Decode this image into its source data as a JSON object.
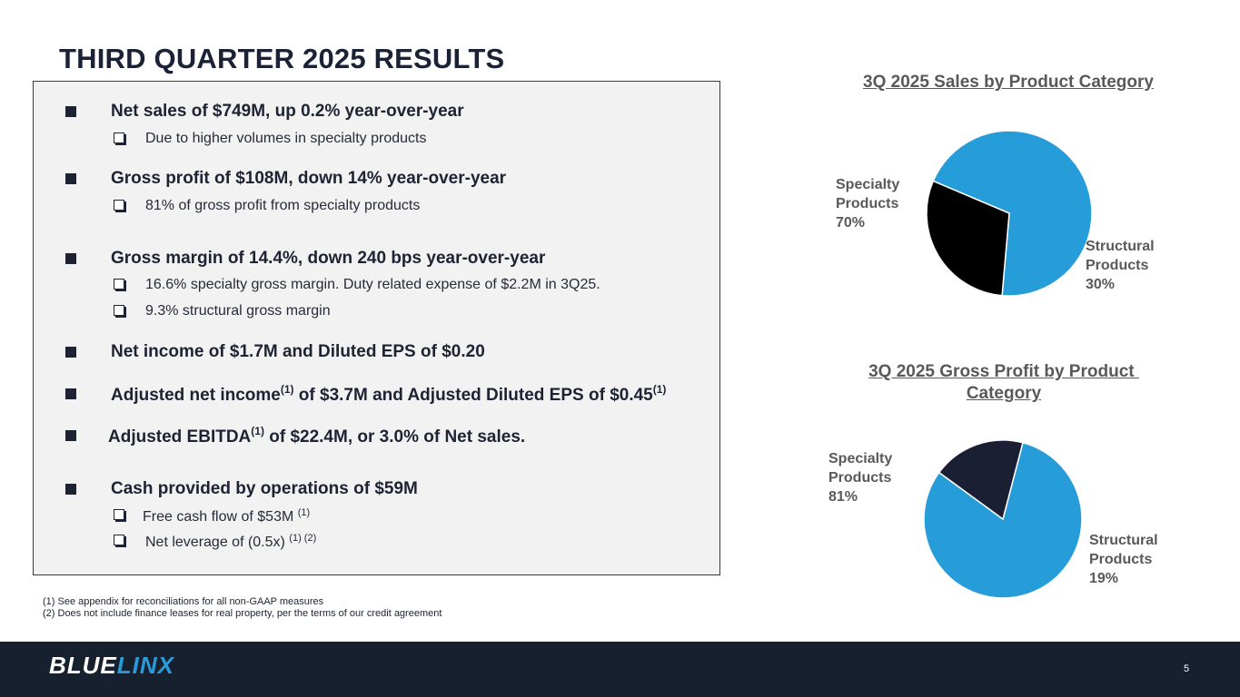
{
  "title": "THIRD QUARTER 2025 RESULTS",
  "bullets": {
    "b1": {
      "text": "Net sales of $749M, up 0.2% year-over-year"
    },
    "b1s1": {
      "text": "Due to higher volumes in specialty products"
    },
    "b2": {
      "text": "Gross profit of $108M, down 14% year-over-year"
    },
    "b2s1": {
      "text": "81% of gross profit from specialty products"
    },
    "b3": {
      "text": "Gross margin of 14.4%, down 240 bps year-over-year"
    },
    "b3s1": {
      "text": "16.6% specialty gross margin. Duty related expense of $2.2M in 3Q25."
    },
    "b3s2": {
      "text": "9.3% structural gross margin"
    },
    "b4": {
      "text": "Net income of $1.7M and Diluted EPS of $0.20"
    },
    "b5": {
      "pre": "Adjusted net income",
      "sup1": "(1)",
      "mid": " of $3.7M and Adjusted Diluted EPS of $0.45",
      "sup2": "(1)"
    },
    "b6": {
      "pre": "Adjusted EBITDA",
      "sup1": "(1)",
      "post": " of $22.4M, or 3.0% of Net sales."
    },
    "b7": {
      "text": "Cash provided by operations of $59M"
    },
    "b7s1": {
      "text": "Free cash flow of $53M ",
      "sup": "(1)"
    },
    "b7s2": {
      "text": "Net leverage of (0.5x) ",
      "sup": "(1) (2)"
    }
  },
  "footnotes": [
    "(1) See appendix for reconciliations for all non-GAAP measures",
    "(2) Does not include finance leases for real property, per the terms of our credit agreement"
  ],
  "chart_data": [
    {
      "type": "pie",
      "title": "3Q 2025 Sales by Product Category",
      "slices": [
        {
          "label": "Specialty Products",
          "value": 70,
          "display": "70%",
          "color": "#269cd8"
        },
        {
          "label": "Structural Products",
          "value": 30,
          "display": "30%",
          "color": "#000000"
        }
      ]
    },
    {
      "type": "pie",
      "title": "3Q 2025 Gross Profit by Product Category",
      "slices": [
        {
          "label": "Specialty Products",
          "value": 81,
          "display": "81%",
          "color": "#269cd8"
        },
        {
          "label": "Structural Products",
          "value": 19,
          "display": "19%",
          "color": "#1b1f33"
        }
      ]
    }
  ],
  "chart_labels": {
    "c1_spec": [
      "Specialty",
      "Products",
      "70%"
    ],
    "c1_struct": [
      "Structural",
      "Products",
      "30%"
    ],
    "c2_title_l1": "3Q 2025 Gross Profit by Product ",
    "c2_title_l2": "Category",
    "c2_spec": [
      "Specialty",
      "Products",
      "81%"
    ],
    "c2_struct": [
      "Structural",
      "Products",
      "19%"
    ]
  },
  "footer": {
    "logo_part1": "BLUE",
    "logo_part2": "LINX",
    "page_number": "5"
  },
  "colors": {
    "accent": "#269cd8",
    "navy": "#17202f",
    "text": "#1d2333"
  }
}
